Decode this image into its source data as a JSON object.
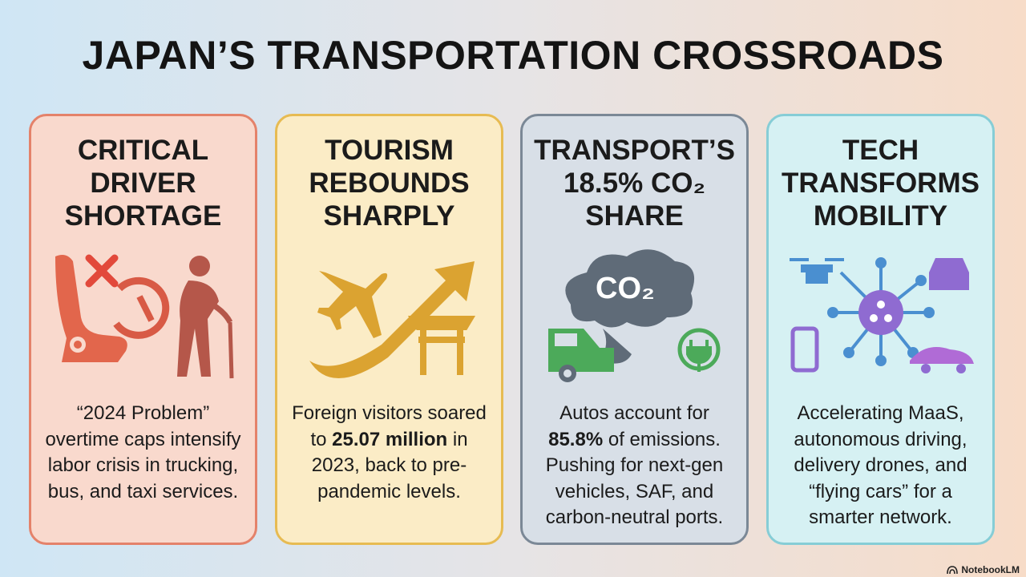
{
  "header": {
    "title": "JAPAN’S TRANSPORTATION CROSSROADS"
  },
  "cards": [
    {
      "heading": [
        "CRITICAL",
        "DRIVER",
        "SHORTAGE"
      ],
      "body": [
        {
          "text": "“2024 Problem” overtime caps intensify labor crisis in trucking, bus, and taxi services.",
          "bold": false
        }
      ]
    },
    {
      "heading": [
        "TOURISM",
        "REBOUNDS",
        "SHARPLY"
      ],
      "body": [
        {
          "text": "Foreign visitors soared to ",
          "bold": false
        },
        {
          "text": "25.07 million",
          "bold": true
        },
        {
          "text": " in 2023, back to pre-pandemic levels.",
          "bold": false
        }
      ]
    },
    {
      "heading": [
        "TRANSPORT’S",
        "18.5% CO₂",
        "SHARE"
      ],
      "icon_label": "CO₂",
      "body": [
        {
          "text": "Autos account for ",
          "bold": false
        },
        {
          "text": "85.8%",
          "bold": true
        },
        {
          "text": " of emissions. Pushing for next-gen vehicles, SAF, and carbon-neutral ports.",
          "bold": false
        }
      ]
    },
    {
      "heading": [
        "TECH",
        "TRANSFORMS",
        "MOBILITY"
      ],
      "body": [
        {
          "text": "Accelerating MaaS, autonomous driving, delivery drones, and “flying cars” for a smarter network.",
          "bold": false
        }
      ]
    }
  ],
  "footer": {
    "brand": "NotebookLM"
  }
}
